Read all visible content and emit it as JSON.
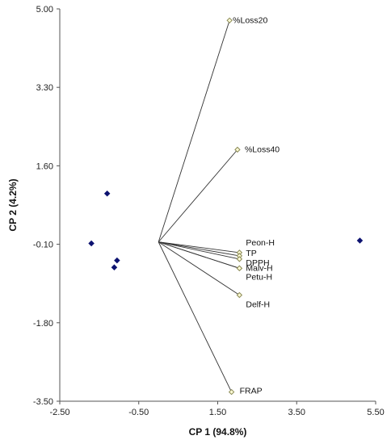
{
  "chart_data": {
    "type": "scatter",
    "title": "",
    "xlabel": "CP 1 (94.8%)",
    "ylabel": "CP 2 (4.2%)",
    "xlim": [
      -2.5,
      5.5
    ],
    "ylim": [
      -3.5,
      5.0
    ],
    "x_ticks": [
      "-2.50",
      "-0.50",
      "1.50",
      "3.50",
      "5.50"
    ],
    "y_ticks": [
      "5.00",
      "3.30",
      "1.60",
      "-0.10",
      "-1.80",
      "-3.50"
    ],
    "grid": false,
    "vector_origin": [
      0.0,
      -0.05
    ],
    "vectors": [
      {
        "name": "%Loss20",
        "x": 1.8,
        "y": 4.75
      },
      {
        "name": "%Loss40",
        "x": 2.0,
        "y": 1.95
      },
      {
        "name": "Peon-H",
        "x": 2.05,
        "y": -0.28
      },
      {
        "name": "TP",
        "x": 2.05,
        "y": -0.35
      },
      {
        "name": "DPPH",
        "x": 2.05,
        "y": -0.42
      },
      {
        "name": "Malv-H",
        "x": 2.05,
        "y": -0.62
      },
      {
        "name": "Petu-H",
        "x": 2.05,
        "y": -0.62
      },
      {
        "name": "Delf-H",
        "x": 2.05,
        "y": -1.2
      },
      {
        "name": "FRAP",
        "x": 1.85,
        "y": -3.3
      }
    ],
    "points": [
      {
        "x": -1.3,
        "y": 1.0
      },
      {
        "x": -1.7,
        "y": -0.08
      },
      {
        "x": -1.05,
        "y": -0.45
      },
      {
        "x": -1.12,
        "y": -0.6
      },
      {
        "x": 5.1,
        "y": -0.02
      }
    ],
    "colors": {
      "points": "#0d1270",
      "vector_marker_fill": "#fffbd6",
      "vector_marker_stroke": "#8a8a55",
      "lines": "#333333"
    }
  }
}
